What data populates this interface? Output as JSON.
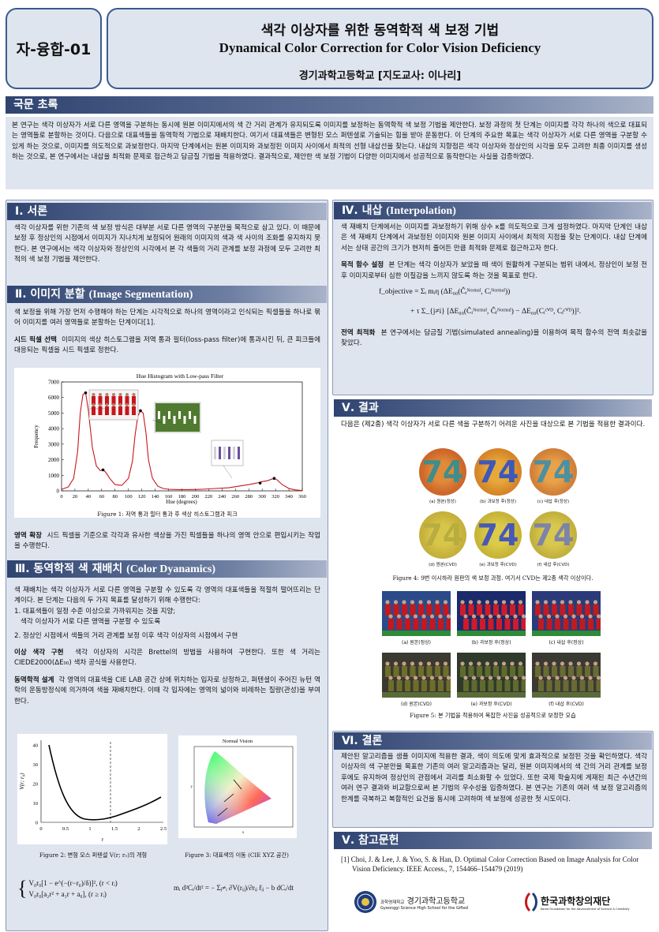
{
  "header": {
    "code": "자-융합-01",
    "title_ko": "색각 이상자를 위한 동역학적 색 보정 기법",
    "title_en": "Dynamical Color Correction for Color Vision Deficiency",
    "affiliation": "경기과학고등학교 [지도교사: 이나리]"
  },
  "abstract": {
    "heading": "국문 초록",
    "text": "본 연구는 색각 이상자가 서로 다른 영역을 구분하는 동시에 원본 이미지에서의 색 간 거리 관계가 유지되도록 이미지를 보정하는 동역학적 색 보정 기법을 제안한다. 보정 과정의 첫 단계는 이미지를 각각 하나의 색으로 대표되는 영역들로 분할하는 것이다. 다음으로 대표색들을 동역학적 기법으로 재배치한다. 여기서 대표색들은 변형된 모스 퍼텐셜로 기술되는 힘을 받아 운동한다. 이 단계의 주요한 목표는 색각 이상자가 서로 다른 영역을 구분할 수 있게 하는 것으로, 이미지를 의도적으로 과보정한다. 마지막 단계에서는 원본 이미지와 과보정된 이미지 사이에서 최적의 선형 내삽선을 찾는다. 내삽의 지향점은 색각 이상자와 정상인의 시각을 모두 고려한 최종 이미지를 생성하는 것으로, 본 연구에서는 내삽을 최적화 문제로 접근하고 담금질 기법을 적용하였다. 결과적으로, 제안한 색 보정 기법이 다양한 이미지에서 성공적으로 동작한다는 사실을 검증하였다."
  },
  "intro": {
    "heading": "Ⅰ. 서론",
    "text": "색각 이상자를 위한 기존의 색 보정 방식은 대부분 서로 다른 영역의 구분만을 목적으로 삼고 있다. 이 때문에 보정 후 정상인의 시점에서 이미지가 지나치게 보정되어 원래의 이미지의 색과 색 사이의 조화를 유지하지 못한다. 본 연구에서는 색각 이상자와 정상인의 시각에서 본 각 색들의 거리 관계를 보정 과정에 모두 고려한 최적의 색 보정 기법을 제안한다."
  },
  "segmentation": {
    "heading_ko": "Ⅱ. 이미지 분할",
    "heading_en": "(Image Segmentation)",
    "text": "색 보정을 위해 가장 먼저 수행해야 하는 단계는 시각적으로 하나의 영역이라고 인식되는 픽셀들을 하나로 묶어 이미지를 여러 영역들로 분할하는 단계이다[1].",
    "seed_title": "시드 픽셀 선택",
    "seed_text": "이미지의 색상 히스토그램을 저역 통과 필터(loss-pass filter)에 통과시킨 뒤, 큰 피크들에 대응되는 픽셀을 시드 픽셀로 정한다.",
    "figure_caption": "Figure 1: 저역 통과 필터 통과 후 색상 히스토그램과 피크",
    "expand_title": "영역 확장",
    "expand_text": "시드 픽셀을 기준으로 각각과 유사한 색상을 가진 픽셀들을 하나의 영역 안으로 편입시키는 작업을 수행한다."
  },
  "chart_data": {
    "type": "line",
    "title": "Hue Histogram with Low-pass Filter",
    "xlabel": "Hue (degrees)",
    "ylabel": "Frequency",
    "xlim": [
      0,
      360
    ],
    "ylim": [
      0,
      7000
    ],
    "x_ticks": [
      0,
      20,
      40,
      60,
      80,
      100,
      120,
      140,
      160,
      180,
      200,
      220,
      240,
      260,
      280,
      300,
      320,
      340,
      360
    ],
    "y_ticks": [
      0,
      1000,
      2000,
      3000,
      4000,
      5000,
      6000,
      7000
    ],
    "series": [
      {
        "x": [
          0,
          10,
          18,
          24,
          28,
          32,
          36,
          40,
          46,
          52,
          58,
          62,
          66,
          72,
          80,
          90,
          100,
          106,
          110,
          114,
          118,
          122,
          126,
          130,
          136,
          144,
          152,
          160,
          175,
          190,
          210,
          230,
          250,
          265,
          280,
          292,
          300,
          308,
          314,
          318,
          322,
          330,
          340,
          350,
          360
        ],
        "y": [
          100,
          250,
          800,
          2500,
          5000,
          6200,
          6300,
          5200,
          2800,
          1600,
          1300,
          1350,
          1200,
          800,
          400,
          350,
          800,
          1900,
          3600,
          4800,
          5150,
          5000,
          3800,
          2000,
          800,
          300,
          150,
          100,
          80,
          80,
          100,
          150,
          200,
          300,
          400,
          500,
          600,
          650,
          750,
          800,
          720,
          400,
          150,
          60,
          20
        ]
      }
    ],
    "peaks": [
      {
        "x": 36,
        "y": 6300
      },
      {
        "x": 62,
        "y": 1350
      },
      {
        "x": 118,
        "y": 5150
      },
      {
        "x": 297,
        "y": 500
      },
      {
        "x": 318,
        "y": 800
      }
    ]
  },
  "dynamics": {
    "heading_ko": "Ⅲ. 동역학적 색 재배치",
    "heading_en": "(Color Dyanamics)",
    "text1": "색 재배치는 색각 이상자가 서로 다른 영역을 구분할 수 있도록 각 영역의 대표색들을 적절히 떨어뜨리는 단계이다. 본 단계는 다음의 두 가지 목표를 달성하기 위해 수행한다:",
    "goal1": "1. 대표색들이 일정 수준 이상으로 가까워지는 것을 지양;",
    "goal1b": "색각 이상자가 서로 다른 영역을 구분할 수 있도록",
    "goal2": "2. 정상인 시점에서 색들의 거리 관계를 보정 이후 색각 이상자의 시점에서 구현",
    "cvd_title": "이상 색각 구현",
    "cvd_text": "색각 이상자의 시각은 Brettel의 방법을 사용하여 구현한다. 또한 색 거리는 CIEDE2000(ΔE₀₀) 색차 공식을 사용한다.",
    "design_title": "동역학적 설계",
    "design_text": "각 영역의 대표색을 CIE LAB 공간 상에 위치하는 입자로 상정하고, 퍼텐셜이 주어진 뉴턴 역학의 운동방정식에 의거하여 색을 재배치한다. 이때 각 입자에는 영역의 넓이와 비례하는 질량(관성)을 부여한다.",
    "fig2_caption": "Figure 2: 변형 모스 퍼텐셜 V(r; r₀)의 개형",
    "fig3_caption": "Figure 3: 대표색의 이동 (CIE XYZ 공간)",
    "fig3_title": "Normal Vision",
    "fig2_xlabel": "r",
    "fig2_ylabel": "V(r; r₀)",
    "fig2_xticks": [
      "0",
      "0.5",
      "1",
      "1.5",
      "2",
      "2.5"
    ],
    "fig2_yticks": [
      "0",
      "10",
      "20",
      "30",
      "40"
    ],
    "eq_potential_1": "V₀r₀[1 − e^(−(r−r₀)/δ)]²,    (r < rᵢ)",
    "eq_potential_2": "V₀r₀[a₂r² + a₁r + a₀],    (r ≥ rᵢ)",
    "eq_motion": "mᵢ d²Cᵢ/dt² = − Σⱼ≠ᵢ ∂V(rᵢⱼ)/∂rᵢⱼ r̂ᵢⱼ − b dCᵢ/dt"
  },
  "interp": {
    "heading_ko": "Ⅳ. 내삽",
    "heading_en": "(Interpolation)",
    "text": "색 재배치 단계에서는 이미지를 과보정하기 위해 상수 κ를 의도적으로 크게 설정하였다. 마지막 단계인 내삽은 색 재배치 단계에서 과보정된 이미지와 원본 이미지 사이에서 최적의 지점을 찾는 단계이다. 내삽 단계에서는 상태 공간의 크기가 현저히 줄어든 만큼 최적화 문제로 접근하고자 한다.",
    "obj_title": "목적 함수 설정",
    "obj_text": "본 단계는 색각 이상자가 보았을 때 색이 원활하게 구분되는 범위 내에서, 정상인이 보정 전후 이미지로부터 심한 이질감을 느끼지 않도록 하는 것을 목표로 한다.",
    "eq_objective_1": "f_objective = Σᵢ mᵢη (ΔE₀₀(Ĉᵢᴺᵒʳᵐᵃˡ, Cᵢᴺᵒʳᵐᵃˡ))",
    "eq_objective_2": "+ τ Σ_{j≠i} [ΔE₀₀(Ĉᵢᴺᵒʳᵐᵃˡ, Ĉⱼᴺᵒʳᵐᵃˡ) − ΔE₀₀(Cᵢᶜⱽᴰ, Cⱼᶜⱽᴰ)]².",
    "global_title": "전역 최적화",
    "global_text": "본 연구에서는 담금질 기법(simulated annealing)을 이용하여 목적 함수의 전역 최솟값을 찾았다."
  },
  "results": {
    "heading": "Ⅴ. 결과",
    "text": "다음은 (제2종) 색각 이상자가 서로 다른 색을 구분하기 어려운 사진을 대상으로 본 기법을 적용한 결과이다.",
    "plate_number": "74",
    "plate_labels": [
      "(a) 원본(정상)",
      "(b) 과보정 후(정상)",
      "(c) 내삽 후(정상)",
      "(d) 원본(CVD)",
      "(e) 과보정 후(CVD)",
      "(f) 내삽 후(CVD)"
    ],
    "fig4_caption": "Figure 4: 9번 이시하라 원판의 색 보정 과정. 여기서 CVD는 제2종 색각 이상이다.",
    "photo_labels": [
      "(a) 원본(정상)",
      "(b) 과보정 후(정상)",
      "(c) 내삽 후(정상)",
      "(d) 원본(CVD)",
      "(e) 과보정 후(CVD)",
      "(f) 내삽 후(CVD)"
    ],
    "fig5_caption": "Figure 5: 본 기법을 적용하여 복잡한 사진을 성공적으로 보정한 모습"
  },
  "conclusion": {
    "heading": "Ⅵ. 결론",
    "text": "제안된 알고리즘을 샘플 이미지에 적용한 결과, 색이 의도에 맞게 효과적으로 보정된 것을 확인하였다. 색각 이상자의 색 구분만을 목표한 기존의 여러 알고리즘과는 달리, 원본 이미지에서의 색 간의 거리 관계를 보정 후에도 유지하여 정상인의 관점에서 괴리를 최소화할 수 있었다. 또한 국제 학술지에 게재된 최근 수년간의 여러 연구 결과와 비교함으로써 본 기법의 우수성을 입증하였다. 본 연구는 기존의 여러 색 보정 알고리즘의 한계를 극복하고 복합적인 요건을 동시에 고려하며 색 보정에 성공한 첫 시도이다."
  },
  "references": {
    "heading": "Ⅴ. 참고문헌",
    "ref1": "[1] Choi, J. & Lee, J. & Yoo, S. & Han, D. Optimal Color Correction Based on Image Analysis for Color Vision Deficiency. IEEE Access., 7, 154466–154479 (2019)"
  },
  "footer": {
    "school_prefix": "과학영재학교",
    "school_ko": "경기과학고등학교",
    "school_en": "Gyeonggi Science High School for the Gifted",
    "foundation_ko": "한국과학창의재단",
    "foundation_en": "Korea Foundation for the Advancement of Science & Creativity"
  },
  "colors": {
    "accent": "#2f4470",
    "box": "#dfe5ef",
    "curve": "#c8161d"
  }
}
